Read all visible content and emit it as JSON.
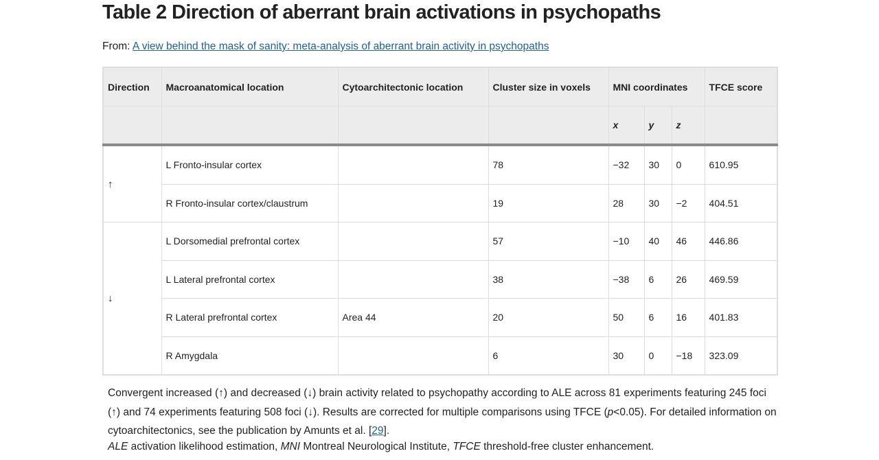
{
  "title": "Table 2 Direction of aberrant brain activations in psychopaths",
  "from": {
    "prefix": "From:",
    "link": "A view behind the mask of sanity: meta-analysis of aberrant brain activity in psychopaths"
  },
  "table": {
    "headers": {
      "direction": "Direction",
      "macro": "Macroanatomical location",
      "cyto": "Cytoarchitectonic location",
      "cluster": "Cluster size in voxels",
      "mni": "MNI coordinates",
      "tfce": "TFCE score",
      "x": "x",
      "y": "y",
      "z": "z"
    },
    "groups": [
      {
        "direction": "↑",
        "rows": [
          {
            "macro": "L Fronto-insular cortex",
            "cyto": "",
            "cluster": "78",
            "x": "−32",
            "y": "30",
            "z": "0",
            "tfce": "610.95"
          },
          {
            "macro": "R Fronto-insular cortex/claustrum",
            "cyto": "",
            "cluster": "19",
            "x": "28",
            "y": "30",
            "z": "−2",
            "tfce": "404.51"
          }
        ]
      },
      {
        "direction": "↓",
        "rows": [
          {
            "macro": "L Dorsomedial prefrontal cortex",
            "cyto": "",
            "cluster": "57",
            "x": "−10",
            "y": "40",
            "z": "46",
            "tfce": "446.86"
          },
          {
            "macro": "L Lateral prefrontal cortex",
            "cyto": "",
            "cluster": "38",
            "x": "−38",
            "y": "6",
            "z": "26",
            "tfce": "469.59"
          },
          {
            "macro": "R Lateral prefrontal cortex",
            "cyto": "Area 44",
            "cluster": "20",
            "x": "50",
            "y": "6",
            "z": "16",
            "tfce": "401.83"
          },
          {
            "macro": "R Amygdala",
            "cyto": "",
            "cluster": "6",
            "x": "30",
            "y": "0",
            "z": "−18",
            "tfce": "323.09"
          }
        ]
      }
    ]
  },
  "caption": {
    "part1": "Convergent increased (↑) and decreased (↓) brain activity related to psychopathy according to ALE across 81 experiments featuring 245 foci (↑) and 74 experiments featuring 508 foci (↓). Results are corrected for multiple comparisons using TFCE (",
    "p": "p",
    "part2": "<0.05). For detailed information on cytoarchitectonics, see the publication by Amunts et al. [",
    "ref": "29",
    "part3": "]."
  },
  "abbreviations": [
    {
      "abbr": "ALE",
      "def": " activation likelihood estimation, "
    },
    {
      "abbr": "MNI",
      "def": " Montreal Neurological Institute, "
    },
    {
      "abbr": "TFCE",
      "def": " threshold-free cluster enhancement."
    }
  ]
}
